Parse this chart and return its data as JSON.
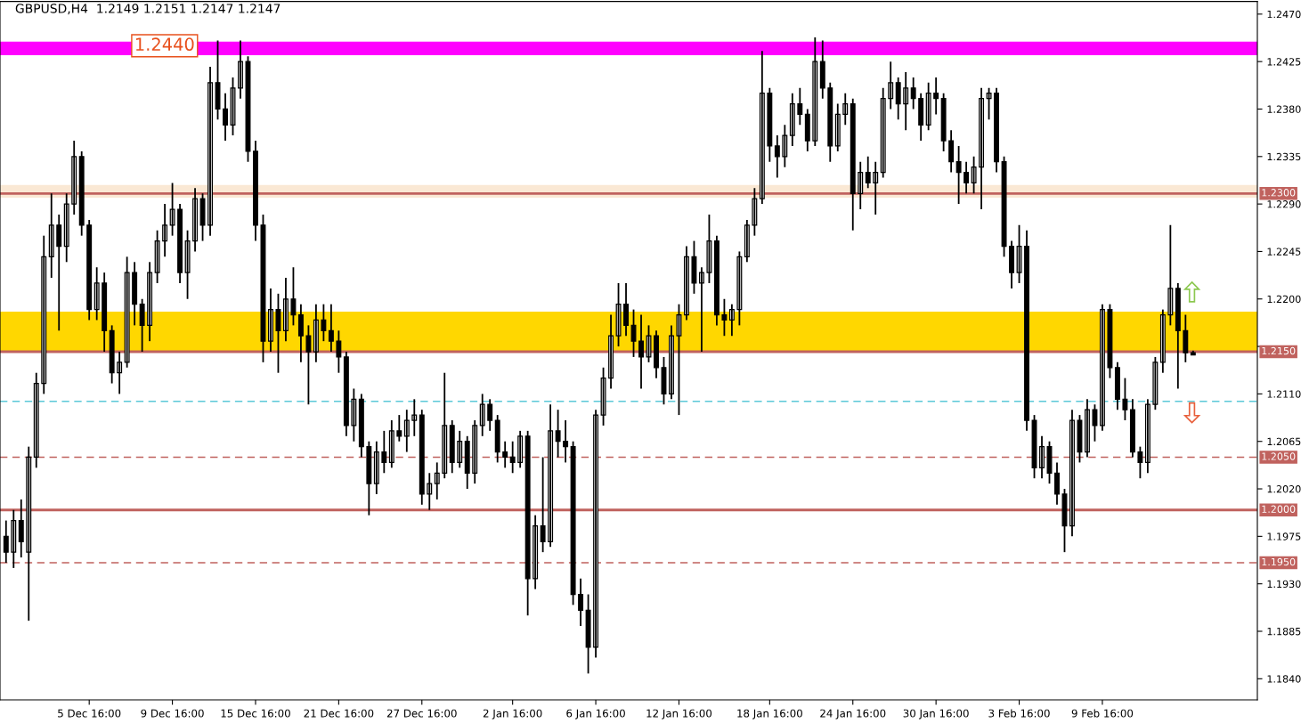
{
  "chart_data": {
    "type": "candlestick",
    "title": "GBPUSD,H4  1.2149 1.2151 1.2147 1.2147",
    "categories": [
      null,
      null,
      null,
      null,
      null,
      null,
      null,
      null,
      null,
      null,
      null,
      "5 Dec 16:00",
      null,
      null,
      null,
      null,
      null,
      null,
      null,
      null,
      null,
      null,
      "9 Dec 16:00",
      null,
      null,
      null,
      null,
      null,
      null,
      null,
      null,
      null,
      null,
      "15 Dec 16:00",
      null,
      null,
      null,
      null,
      null,
      null,
      null,
      null,
      null,
      null,
      "21 Dec 16:00",
      null,
      null,
      null,
      null,
      null,
      null,
      null,
      null,
      null,
      null,
      "27 Dec 16:00",
      null,
      null,
      null,
      null,
      null,
      null,
      null,
      null,
      null,
      null,
      null,
      "2 Jan 16:00",
      null,
      null,
      null,
      null,
      null,
      null,
      null,
      null,
      null,
      null,
      "6 Jan 16:00",
      null,
      null,
      null,
      null,
      null,
      null,
      null,
      null,
      null,
      null,
      "12 Jan 16:00",
      null,
      null,
      null,
      null,
      null,
      null,
      null,
      null,
      null,
      null,
      null,
      "18 Jan 16:00",
      null,
      null,
      null,
      null,
      null,
      null,
      null,
      null,
      null,
      null,
      "24 Jan 16:00",
      null,
      null,
      null,
      null,
      null,
      null,
      null,
      null,
      null,
      null,
      "30 Jan 16:00",
      null,
      null,
      null,
      null,
      null,
      null,
      null,
      null,
      null,
      null,
      "3 Feb 16:00",
      null,
      null,
      null,
      null,
      null,
      null,
      null,
      null,
      null,
      null,
      "9 Feb 16:00",
      null,
      null,
      null,
      null,
      null,
      null,
      null,
      null,
      null,
      null,
      null,
      null,
      null,
      null,
      null,
      null,
      null,
      null,
      null,
      null
    ],
    "ohlc": [
      [
        1.1975,
        1.199,
        1.195,
        1.196
      ],
      [
        1.196,
        1.2,
        1.1945,
        1.199
      ],
      [
        1.199,
        1.201,
        1.1955,
        1.197
      ],
      [
        1.196,
        1.206,
        1.1895,
        1.205
      ],
      [
        1.205,
        1.213,
        1.204,
        1.212
      ],
      [
        1.212,
        1.226,
        1.211,
        1.224
      ],
      [
        1.224,
        1.23,
        1.222,
        1.227
      ],
      [
        1.227,
        1.228,
        1.217,
        1.225
      ],
      [
        1.225,
        1.23,
        1.2235,
        1.229
      ],
      [
        1.229,
        1.235,
        1.228,
        1.2335
      ],
      [
        1.2335,
        1.234,
        1.226,
        1.227
      ],
      [
        1.227,
        1.2275,
        1.218,
        1.219
      ],
      [
        1.219,
        1.223,
        1.218,
        1.2215
      ],
      [
        1.2215,
        1.2225,
        1.215,
        1.217
      ],
      [
        1.217,
        1.2175,
        1.212,
        1.213
      ],
      [
        1.213,
        1.215,
        1.211,
        1.214
      ],
      [
        1.214,
        1.224,
        1.2135,
        1.2225
      ],
      [
        1.2225,
        1.2235,
        1.2175,
        1.2195
      ],
      [
        1.2195,
        1.22,
        1.215,
        1.2175
      ],
      [
        1.2175,
        1.2235,
        1.216,
        1.2225
      ],
      [
        1.2225,
        1.2265,
        1.2215,
        1.2255
      ],
      [
        1.2255,
        1.229,
        1.224,
        1.227
      ],
      [
        1.227,
        1.231,
        1.226,
        1.2285
      ],
      [
        1.2285,
        1.229,
        1.2215,
        1.2225
      ],
      [
        1.2225,
        1.2265,
        1.22,
        1.2255
      ],
      [
        1.2255,
        1.2305,
        1.2245,
        1.2295
      ],
      [
        1.2295,
        1.23,
        1.2255,
        1.227
      ],
      [
        1.227,
        1.242,
        1.226,
        1.2405
      ],
      [
        1.2405,
        1.2445,
        1.237,
        1.238
      ],
      [
        1.238,
        1.2395,
        1.235,
        1.2365
      ],
      [
        1.2365,
        1.241,
        1.2355,
        1.24
      ],
      [
        1.24,
        1.2445,
        1.239,
        1.2425
      ],
      [
        1.2425,
        1.243,
        1.233,
        1.234
      ],
      [
        1.234,
        1.235,
        1.2255,
        1.227
      ],
      [
        1.227,
        1.228,
        1.214,
        1.216
      ],
      [
        1.216,
        1.221,
        1.215,
        1.219
      ],
      [
        1.219,
        1.2205,
        1.213,
        1.217
      ],
      [
        1.217,
        1.222,
        1.216,
        1.22
      ],
      [
        1.22,
        1.223,
        1.2175,
        1.2185
      ],
      [
        1.2185,
        1.2195,
        1.214,
        1.2165
      ],
      [
        1.2165,
        1.2175,
        1.21,
        1.215
      ],
      [
        1.215,
        1.2195,
        1.214,
        1.218
      ],
      [
        1.218,
        1.2195,
        1.216,
        1.217
      ],
      [
        1.217,
        1.2195,
        1.215,
        1.216
      ],
      [
        1.216,
        1.217,
        1.213,
        1.2145
      ],
      [
        1.2145,
        1.215,
        1.207,
        1.208
      ],
      [
        1.208,
        1.2115,
        1.2065,
        1.2105
      ],
      [
        1.2105,
        1.211,
        1.205,
        1.206
      ],
      [
        1.206,
        1.2065,
        1.1995,
        1.2025
      ],
      [
        1.2025,
        1.2065,
        1.2015,
        1.2055
      ],
      [
        1.2055,
        1.2075,
        1.2035,
        1.2045
      ],
      [
        1.2045,
        1.2085,
        1.204,
        1.2075
      ],
      [
        1.2075,
        1.209,
        1.2065,
        1.207
      ],
      [
        1.207,
        1.2095,
        1.2055,
        1.2085
      ],
      [
        1.2085,
        1.2105,
        1.207,
        1.209
      ],
      [
        1.209,
        1.2095,
        1.2005,
        1.2015
      ],
      [
        1.2015,
        1.2035,
        1.2,
        1.2025
      ],
      [
        1.2025,
        1.2045,
        1.201,
        1.2035
      ],
      [
        1.2035,
        1.213,
        1.203,
        1.208
      ],
      [
        1.208,
        1.2085,
        1.2035,
        1.2045
      ],
      [
        1.2045,
        1.2075,
        1.204,
        1.2065
      ],
      [
        1.2065,
        1.207,
        1.202,
        1.2035
      ],
      [
        1.2035,
        1.2085,
        1.2025,
        1.208
      ],
      [
        1.208,
        1.211,
        1.207,
        1.21
      ],
      [
        1.21,
        1.2105,
        1.2075,
        1.2085
      ],
      [
        1.2085,
        1.209,
        1.2045,
        1.2055
      ],
      [
        1.2055,
        1.2065,
        1.204,
        1.205
      ],
      [
        1.205,
        1.2065,
        1.2035,
        1.2045
      ],
      [
        1.2045,
        1.2075,
        1.204,
        1.207
      ],
      [
        1.207,
        1.2075,
        1.19,
        1.1935
      ],
      [
        1.1935,
        1.1995,
        1.1925,
        1.1985
      ],
      [
        1.1985,
        1.205,
        1.196,
        1.197
      ],
      [
        1.197,
        1.21,
        1.1965,
        1.2075
      ],
      [
        1.2075,
        1.2095,
        1.205,
        1.2065
      ],
      [
        1.2065,
        1.2085,
        1.2045,
        1.206
      ],
      [
        1.206,
        1.2065,
        1.191,
        1.192
      ],
      [
        1.192,
        1.1935,
        1.189,
        1.1905
      ],
      [
        1.1905,
        1.192,
        1.1845,
        1.187
      ],
      [
        1.187,
        1.2095,
        1.186,
        1.209
      ],
      [
        1.209,
        1.2135,
        1.208,
        1.2125
      ],
      [
        1.2125,
        1.2185,
        1.2115,
        1.2165
      ],
      [
        1.2165,
        1.2215,
        1.2155,
        1.2195
      ],
      [
        1.2195,
        1.2215,
        1.2165,
        1.2175
      ],
      [
        1.2175,
        1.219,
        1.2145,
        1.216
      ],
      [
        1.216,
        1.2185,
        1.2115,
        1.2145
      ],
      [
        1.2145,
        1.2175,
        1.214,
        1.2165
      ],
      [
        1.2165,
        1.217,
        1.2125,
        1.2135
      ],
      [
        1.2135,
        1.2145,
        1.21,
        1.211
      ],
      [
        1.211,
        1.2175,
        1.2105,
        1.2165
      ],
      [
        1.2165,
        1.2195,
        1.209,
        1.2185
      ],
      [
        1.2185,
        1.225,
        1.218,
        1.224
      ],
      [
        1.224,
        1.2255,
        1.2205,
        1.2215
      ],
      [
        1.2215,
        1.223,
        1.215,
        1.2225
      ],
      [
        1.2225,
        1.228,
        1.2215,
        1.2255
      ],
      [
        1.2255,
        1.226,
        1.2175,
        1.2185
      ],
      [
        1.2185,
        1.22,
        1.2165,
        1.218
      ],
      [
        1.218,
        1.2195,
        1.2165,
        1.219
      ],
      [
        1.219,
        1.2245,
        1.2175,
        1.224
      ],
      [
        1.224,
        1.2275,
        1.2235,
        1.227
      ],
      [
        1.227,
        1.2305,
        1.226,
        1.2295
      ],
      [
        1.2295,
        1.2435,
        1.229,
        1.2395
      ],
      [
        1.2395,
        1.24,
        1.233,
        1.2345
      ],
      [
        1.2345,
        1.2355,
        1.2315,
        1.2335
      ],
      [
        1.2335,
        1.2365,
        1.2325,
        1.2355
      ],
      [
        1.2355,
        1.2395,
        1.2345,
        1.2385
      ],
      [
        1.2385,
        1.24,
        1.2365,
        1.2375
      ],
      [
        1.2375,
        1.238,
        1.234,
        1.235
      ],
      [
        1.235,
        1.2448,
        1.2345,
        1.2425
      ],
      [
        1.2425,
        1.2445,
        1.239,
        1.24
      ],
      [
        1.24,
        1.2405,
        1.233,
        1.2345
      ],
      [
        1.2345,
        1.2385,
        1.234,
        1.2375
      ],
      [
        1.2375,
        1.2395,
        1.2365,
        1.2385
      ],
      [
        1.2385,
        1.239,
        1.2265,
        1.23
      ],
      [
        1.23,
        1.233,
        1.2285,
        1.232
      ],
      [
        1.232,
        1.2335,
        1.2305,
        1.231
      ],
      [
        1.231,
        1.233,
        1.228,
        1.232
      ],
      [
        1.232,
        1.24,
        1.2315,
        1.239
      ],
      [
        1.239,
        1.2425,
        1.238,
        1.2405
      ],
      [
        1.2405,
        1.241,
        1.237,
        1.2385
      ],
      [
        1.2385,
        1.2415,
        1.236,
        1.24
      ],
      [
        1.24,
        1.241,
        1.238,
        1.239
      ],
      [
        1.239,
        1.2395,
        1.235,
        1.2365
      ],
      [
        1.2365,
        1.2405,
        1.236,
        1.2395
      ],
      [
        1.2395,
        1.241,
        1.2375,
        1.239
      ],
      [
        1.239,
        1.2395,
        1.234,
        1.235
      ],
      [
        1.235,
        1.236,
        1.232,
        1.233
      ],
      [
        1.233,
        1.2345,
        1.229,
        1.232
      ],
      [
        1.232,
        1.233,
        1.23,
        1.231
      ],
      [
        1.231,
        1.2335,
        1.23,
        1.2325
      ],
      [
        1.2325,
        1.24,
        1.2285,
        1.239
      ],
      [
        1.239,
        1.24,
        1.237,
        1.2395
      ],
      [
        1.2395,
        1.24,
        1.232,
        1.233
      ],
      [
        1.233,
        1.2335,
        1.224,
        1.225
      ],
      [
        1.225,
        1.2255,
        1.221,
        1.2225
      ],
      [
        1.2225,
        1.227,
        1.2215,
        1.225
      ],
      [
        1.225,
        1.2265,
        1.2075,
        1.2085
      ],
      [
        1.2085,
        1.209,
        1.203,
        1.204
      ],
      [
        1.204,
        1.207,
        1.203,
        1.206
      ],
      [
        1.206,
        1.2065,
        1.2025,
        1.2035
      ],
      [
        1.2035,
        1.2045,
        1.2005,
        1.2015
      ],
      [
        1.2015,
        1.202,
        1.196,
        1.1985
      ],
      [
        1.1985,
        1.2095,
        1.1975,
        1.2085
      ],
      [
        1.2085,
        1.209,
        1.2045,
        1.2055
      ],
      [
        1.2055,
        1.2105,
        1.205,
        1.2095
      ],
      [
        1.2095,
        1.21,
        1.2065,
        1.208
      ],
      [
        1.208,
        1.2195,
        1.2075,
        1.219
      ],
      [
        1.219,
        1.2195,
        1.2125,
        1.2135
      ],
      [
        1.2135,
        1.214,
        1.2095,
        1.2105
      ],
      [
        1.2105,
        1.2125,
        1.2085,
        1.2095
      ],
      [
        1.2095,
        1.2105,
        1.205,
        1.2055
      ],
      [
        1.2055,
        1.206,
        1.203,
        1.2045
      ],
      [
        1.2045,
        1.2105,
        1.2035,
        1.21
      ],
      [
        1.21,
        1.2145,
        1.2095,
        1.214
      ],
      [
        1.214,
        1.219,
        1.213,
        1.2185
      ],
      [
        1.2185,
        1.227,
        1.2175,
        1.221
      ],
      [
        1.221,
        1.2215,
        1.2115,
        1.217
      ],
      [
        1.217,
        1.2185,
        1.214,
        1.2149
      ],
      [
        1.2149,
        1.2151,
        1.2147,
        1.2147
      ],
      null,
      null,
      null,
      null,
      null,
      null,
      null,
      null
    ],
    "ylim": [
      1.182,
      1.2482
    ],
    "yticks": [
      {
        "value": 1.247,
        "label": "1.2470"
      },
      {
        "value": 1.2425,
        "label": "1.2425"
      },
      {
        "value": 1.238,
        "label": "1.2380"
      },
      {
        "value": 1.2335,
        "label": "1.2335"
      },
      {
        "value": 1.229,
        "label": "1.2290"
      },
      {
        "value": 1.2245,
        "label": "1.2245"
      },
      {
        "value": 1.22,
        "label": "1.2200"
      },
      {
        "value": 1.2155,
        "label": null
      },
      {
        "value": 1.211,
        "label": "1.2110"
      },
      {
        "value": 1.2065,
        "label": "1.2065"
      },
      {
        "value": 1.202,
        "label": "1.2020"
      },
      {
        "value": 1.1975,
        "label": "1.1975"
      },
      {
        "value": 1.193,
        "label": "1.1930"
      },
      {
        "value": 1.1885,
        "label": "1.1885"
      },
      {
        "value": 1.184,
        "label": "1.1840"
      }
    ],
    "bands": [
      {
        "axis": "y",
        "from": 1.215,
        "to": 1.2188,
        "color": "#ffd700"
      },
      {
        "axis": "y",
        "from": 1.2296,
        "to": 1.2308,
        "color": "#fae8d4"
      },
      {
        "axis": "y",
        "from": 1.2431,
        "to": 1.2444,
        "color": "#ff00ff"
      }
    ],
    "ref_lines": [
      {
        "axis": "y",
        "value": 1.23,
        "label": "1.2300",
        "color": "#c0625e",
        "line_style": "solid"
      },
      {
        "axis": "y",
        "value": 1.215,
        "label": "1.2150",
        "color": "#c0625e",
        "line_style": "solid"
      },
      {
        "axis": "y",
        "value": 1.205,
        "label": "1.2050",
        "color": "#c0625e",
        "line_style": "dashed"
      },
      {
        "axis": "y",
        "value": 1.2,
        "label": "1.2000",
        "color": "#c0625e",
        "line_style": "solid"
      },
      {
        "axis": "y",
        "value": 1.195,
        "label": "1.1950",
        "color": "#c0625e",
        "line_style": "dashed"
      },
      {
        "axis": "y",
        "value": 1.2103,
        "color": "#5bc8d8",
        "line_style": "dashed"
      }
    ],
    "annotations": [
      {
        "text": "1.2440",
        "y": 1.244
      }
    ],
    "grid": false,
    "legend": false
  }
}
